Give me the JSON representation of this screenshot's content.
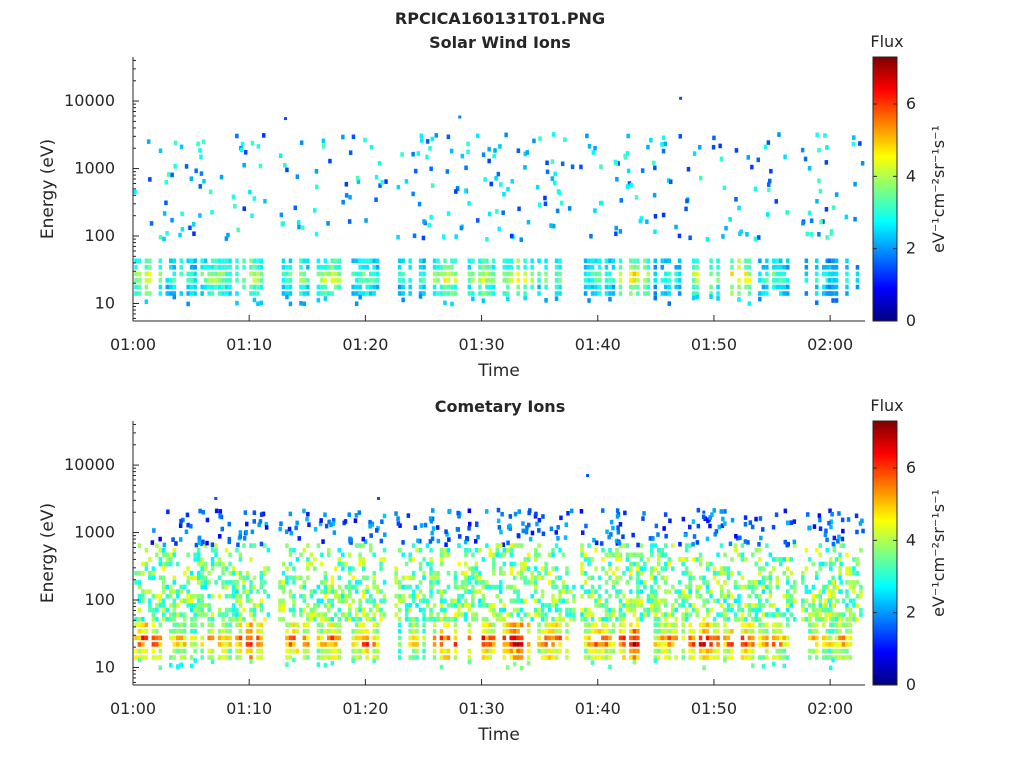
{
  "figure": {
    "title": "RPCICA160131T01.PNG"
  },
  "colorbar": {
    "title": "Flux",
    "units": "eV⁻¹cm⁻²sr⁻¹s⁻¹",
    "range": [
      0,
      7.3
    ],
    "ticks": [
      0,
      2,
      4,
      6
    ],
    "colormap": "jet"
  },
  "chart_data": [
    {
      "type": "heatmap",
      "title": "Solar Wind Ions",
      "xlabel": "Time",
      "ylabel": "Energy (eV)",
      "x_range_minutes": [
        0,
        63
      ],
      "x_ticks": [
        "01:00",
        "01:10",
        "01:20",
        "01:30",
        "01:40",
        "01:50",
        "02:00"
      ],
      "y_scale": "log",
      "y_range": [
        5.5,
        45000
      ],
      "y_ticks": [
        "10",
        "100",
        "1000",
        "10000"
      ],
      "colorbar_ticks": [
        "0",
        "2",
        "4",
        "6"
      ],
      "low_energy_band": {
        "energy_range_eV": [
          13,
          45
        ],
        "bursts": [
          {
            "time": "01:01",
            "flux": 4.5
          },
          {
            "time": "01:04",
            "flux": 3.5
          },
          {
            "time": "01:07",
            "flux": 4.0
          },
          {
            "time": "01:10",
            "flux": 4.3
          },
          {
            "time": "01:14",
            "flux": 3.8
          },
          {
            "time": "01:17",
            "flux": 4.4
          },
          {
            "time": "01:20",
            "flux": 3.6
          },
          {
            "time": "01:24",
            "flux": 3.5
          },
          {
            "time": "01:27",
            "flux": 4.5
          },
          {
            "time": "01:30",
            "flux": 4.3
          },
          {
            "time": "01:33",
            "flux": 4.6
          },
          {
            "time": "01:36",
            "flux": 3.8
          },
          {
            "time": "01:40",
            "flux": 3.5
          },
          {
            "time": "01:43",
            "flux": 4.8
          },
          {
            "time": "01:46",
            "flux": 3.2
          },
          {
            "time": "01:49",
            "flux": 4.4
          },
          {
            "time": "01:52",
            "flux": 4.9
          },
          {
            "time": "01:55",
            "flux": 3.5
          },
          {
            "time": "01:59",
            "flux": 3.2
          },
          {
            "time": "02:01",
            "flux": 3.0
          }
        ]
      },
      "sparse_high_energy": {
        "energy_range_eV": [
          80,
          3000
        ],
        "typical_flux": 2.5,
        "isolated_points": [
          {
            "time": "01:13",
            "energy": 5500,
            "flux": 1.5
          },
          {
            "time": "01:28",
            "energy": 5800,
            "flux": 1.8
          },
          {
            "time": "01:47",
            "energy": 11000,
            "flux": 1.5
          }
        ]
      }
    },
    {
      "type": "heatmap",
      "title": "Cometary Ions",
      "xlabel": "Time",
      "ylabel": "Energy (eV)",
      "x_range_minutes": [
        0,
        63
      ],
      "x_ticks": [
        "01:00",
        "01:10",
        "01:20",
        "01:30",
        "01:40",
        "01:50",
        "02:00"
      ],
      "y_scale": "log",
      "y_range": [
        5.5,
        45000
      ],
      "y_ticks": [
        "10",
        "100",
        "1000",
        "10000"
      ],
      "colorbar_ticks": [
        "0",
        "2",
        "4",
        "6"
      ],
      "low_energy_band": {
        "energy_range_eV": [
          13,
          45
        ],
        "bursts": [
          {
            "time": "01:01",
            "flux": 6.2
          },
          {
            "time": "01:04",
            "flux": 5.0
          },
          {
            "time": "01:07",
            "flux": 5.6
          },
          {
            "time": "01:10",
            "flux": 6.5
          },
          {
            "time": "01:14",
            "flux": 5.9
          },
          {
            "time": "01:17",
            "flux": 5.6
          },
          {
            "time": "01:20",
            "flux": 5.8
          },
          {
            "time": "01:24",
            "flux": 4.8
          },
          {
            "time": "01:27",
            "flux": 6.2
          },
          {
            "time": "01:30",
            "flux": 6.2
          },
          {
            "time": "01:33",
            "flux": 6.7
          },
          {
            "time": "01:36",
            "flux": 6.0
          },
          {
            "time": "01:40",
            "flux": 5.8
          },
          {
            "time": "01:43",
            "flux": 6.8
          },
          {
            "time": "01:46",
            "flux": 5.6
          },
          {
            "time": "01:49",
            "flux": 6.5
          },
          {
            "time": "01:52",
            "flux": 6.3
          },
          {
            "time": "01:55",
            "flux": 5.6
          },
          {
            "time": "01:59",
            "flux": 5.3
          },
          {
            "time": "02:01",
            "flux": 5.2
          }
        ]
      },
      "mid_energy_plumes": {
        "energy_range_eV": [
          60,
          600
        ],
        "typical_flux": 3.5
      },
      "sparse_high_energy": {
        "energy_range_eV": [
          600,
          2000
        ],
        "typical_flux": 1.8,
        "isolated_points": [
          {
            "time": "01:07",
            "energy": 3200,
            "flux": 1.5
          },
          {
            "time": "01:21",
            "energy": 3200,
            "flux": 1.5
          },
          {
            "time": "01:39",
            "energy": 7000,
            "flux": 1.5
          },
          {
            "time": "01:49",
            "energy": 2000,
            "flux": 1.5
          }
        ]
      }
    }
  ]
}
